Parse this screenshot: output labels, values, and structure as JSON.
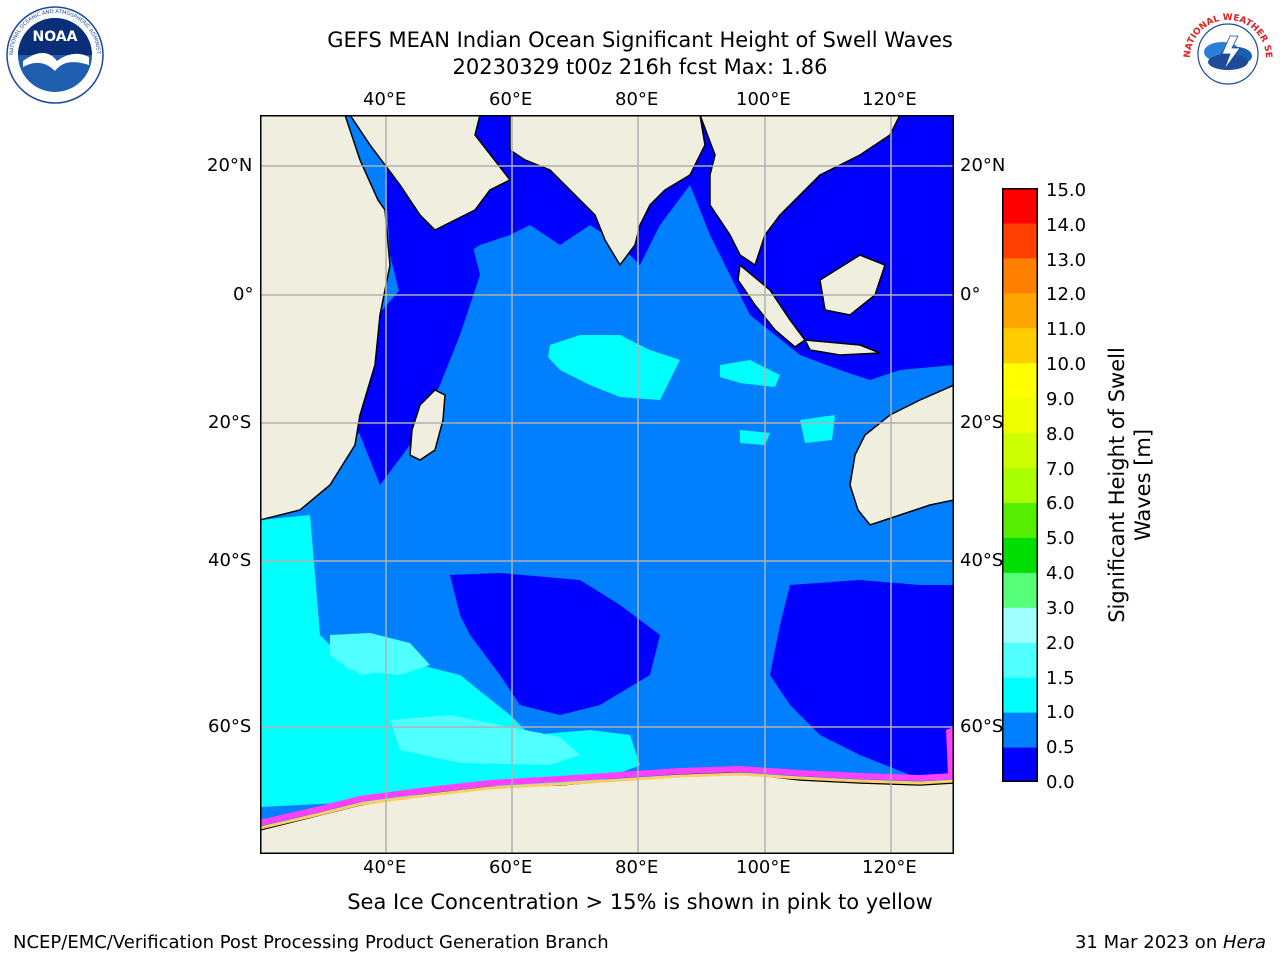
{
  "header": {
    "title_line1": "GEFS MEAN Indian Ocean Significant Height of Swell Waves",
    "title_line2": "20230329 t00z 216h fcst   Max: 1.86"
  },
  "logos": {
    "left": {
      "icon": "noaa-logo-icon",
      "text": "NOAA",
      "ring_text": "NATIONAL OCEANIC AND ATMOSPHERIC ADMINISTRATION · U.S. DEPARTMENT OF COMMERCE"
    },
    "right": {
      "icon": "nws-logo-icon",
      "ring_text": "NATIONAL WEATHER SERVICE"
    }
  },
  "map": {
    "lon_ticks": [
      "40°E",
      "60°E",
      "80°E",
      "100°E",
      "120°E"
    ],
    "lat_ticks": [
      "20°N",
      "0°",
      "20°S",
      "40°S",
      "60°S"
    ],
    "colors": {
      "land": "#efeedf",
      "deep_blue": "#0000ff",
      "mid_blue": "#0080ff",
      "cyan": "#00ffff",
      "light_cyan": "#50ffff",
      "pale_cyan": "#a0ffff",
      "ice_pink": "#ff40ff",
      "ice_yellow": "#ffff00",
      "grid": "#b0b0b0"
    }
  },
  "colorbar": {
    "label": "Significant Height of Swell Waves [m]",
    "label_line1": "Significant Height of Swell",
    "label_line2": "Waves [m]",
    "ticks": [
      "15.0",
      "14.0",
      "13.0",
      "12.0",
      "11.0",
      "10.0",
      "9.0",
      "8.0",
      "7.0",
      "6.0",
      "5.0",
      "4.0",
      "3.0",
      "2.0",
      "1.5",
      "1.0",
      "0.5",
      "0.0"
    ],
    "bins": [
      {
        "from": 0.0,
        "to": 0.5,
        "color": "#0000ff"
      },
      {
        "from": 0.5,
        "to": 1.0,
        "color": "#0080ff"
      },
      {
        "from": 1.0,
        "to": 1.5,
        "color": "#00ffff"
      },
      {
        "from": 1.5,
        "to": 2.0,
        "color": "#50ffff"
      },
      {
        "from": 2.0,
        "to": 3.0,
        "color": "#a0ffff"
      },
      {
        "from": 3.0,
        "to": 4.0,
        "color": "#55ff77"
      },
      {
        "from": 4.0,
        "to": 5.0,
        "color": "#00dd00"
      },
      {
        "from": 5.0,
        "to": 6.0,
        "color": "#55ee00"
      },
      {
        "from": 6.0,
        "to": 7.0,
        "color": "#aaff00"
      },
      {
        "from": 7.0,
        "to": 8.0,
        "color": "#ccff00"
      },
      {
        "from": 8.0,
        "to": 9.0,
        "color": "#eeff00"
      },
      {
        "from": 9.0,
        "to": 10.0,
        "color": "#ffff00"
      },
      {
        "from": 10.0,
        "to": 11.0,
        "color": "#ffcc00"
      },
      {
        "from": 11.0,
        "to": 12.0,
        "color": "#ffa500"
      },
      {
        "from": 12.0,
        "to": 13.0,
        "color": "#ff8000"
      },
      {
        "from": 13.0,
        "to": 14.0,
        "color": "#ff4000"
      },
      {
        "from": 14.0,
        "to": 15.0,
        "color": "#ff0000"
      }
    ]
  },
  "caption": "Sea Ice Concentration > 15% is shown in pink to yellow",
  "footer": {
    "left": "NCEP/EMC/Verification Post Processing Product Generation Branch",
    "date": "31 Mar 2023 on ",
    "machine": "Hera"
  }
}
